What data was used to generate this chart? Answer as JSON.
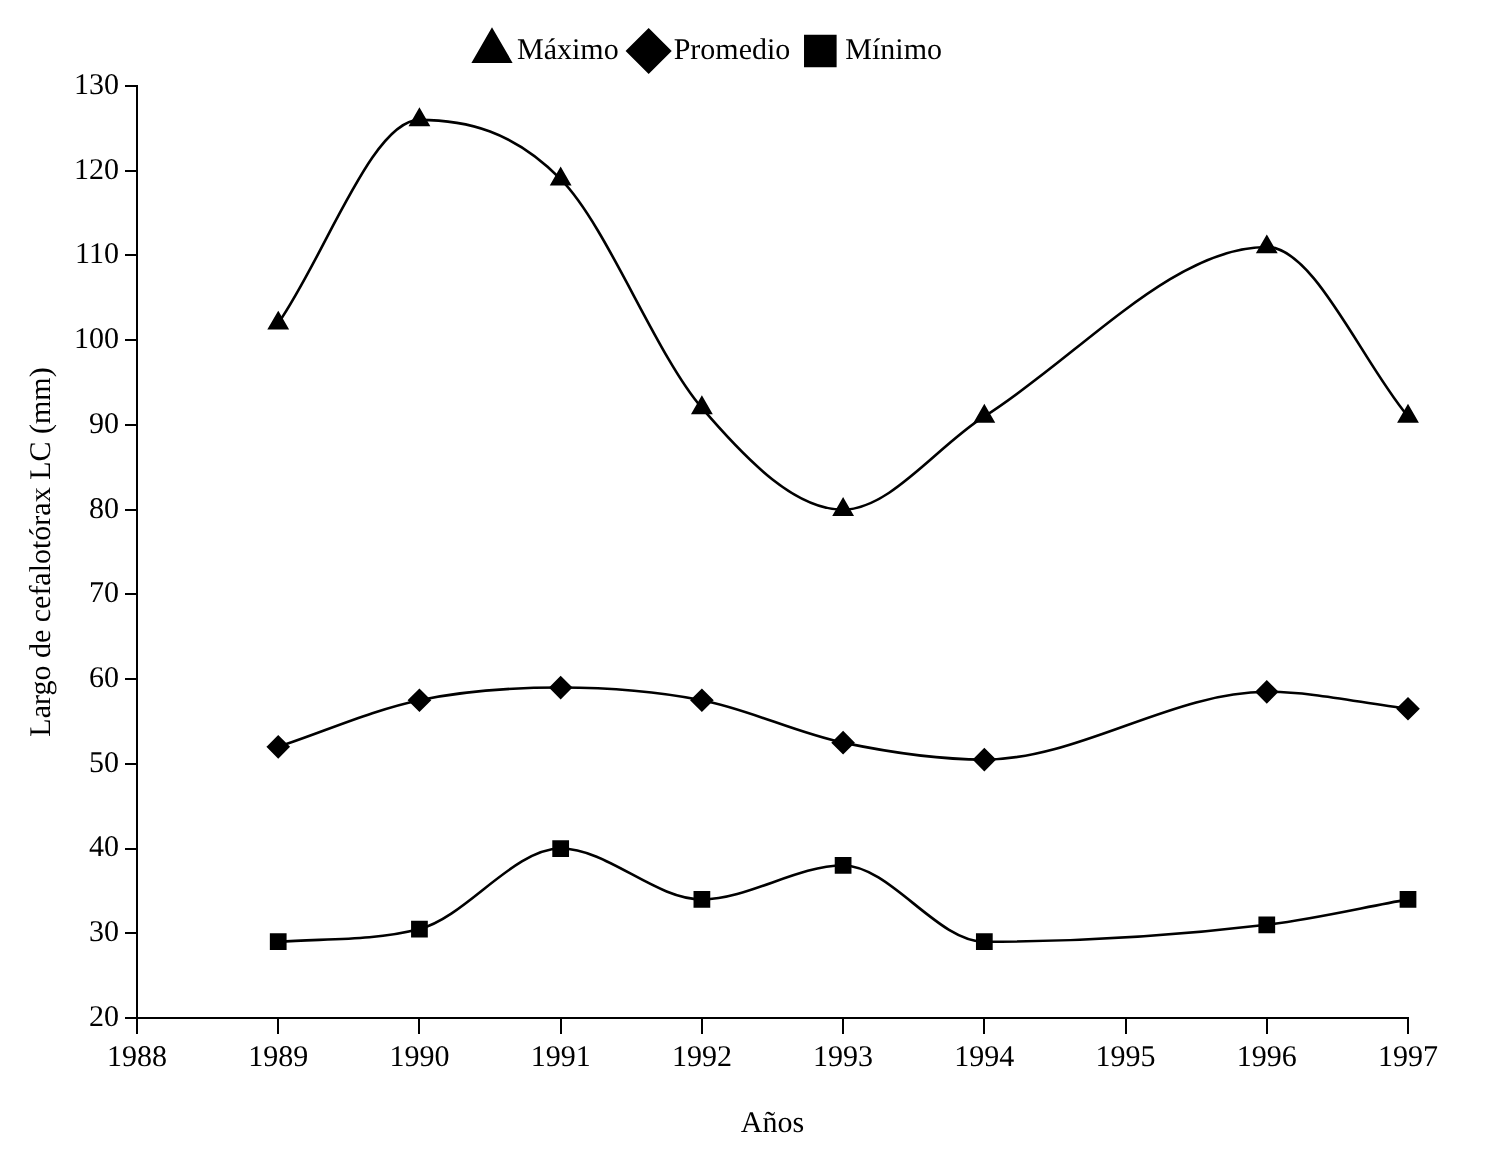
{
  "chart_data": {
    "type": "line",
    "xlabel": "Años",
    "ylabel": "Largo de cefalotórax LC (mm)",
    "x": [
      1989,
      1990,
      1991,
      1992,
      1993,
      1994,
      1996,
      1997
    ],
    "xlim": [
      1988,
      1997
    ],
    "xticks": [
      1988,
      1989,
      1990,
      1991,
      1992,
      1993,
      1994,
      1995,
      1996,
      1997
    ],
    "ylim": [
      20,
      130
    ],
    "yticks": [
      20,
      30,
      40,
      50,
      60,
      70,
      80,
      90,
      100,
      110,
      120,
      130
    ],
    "grid": false,
    "legend": "top",
    "series": [
      {
        "name": "Máximo",
        "color": "#000000",
        "marker": "triangle",
        "values": [
          102,
          126,
          119,
          92,
          80,
          91,
          111,
          91
        ]
      },
      {
        "name": "Promedio",
        "color": "#000000",
        "marker": "diamond",
        "values": [
          52,
          57.5,
          59,
          57.5,
          52.5,
          50.5,
          58.5,
          56.5
        ]
      },
      {
        "name": "Mínimo",
        "color": "#000000",
        "marker": "square",
        "values": [
          29,
          30.5,
          40,
          34,
          38,
          29,
          31,
          34
        ]
      }
    ]
  }
}
